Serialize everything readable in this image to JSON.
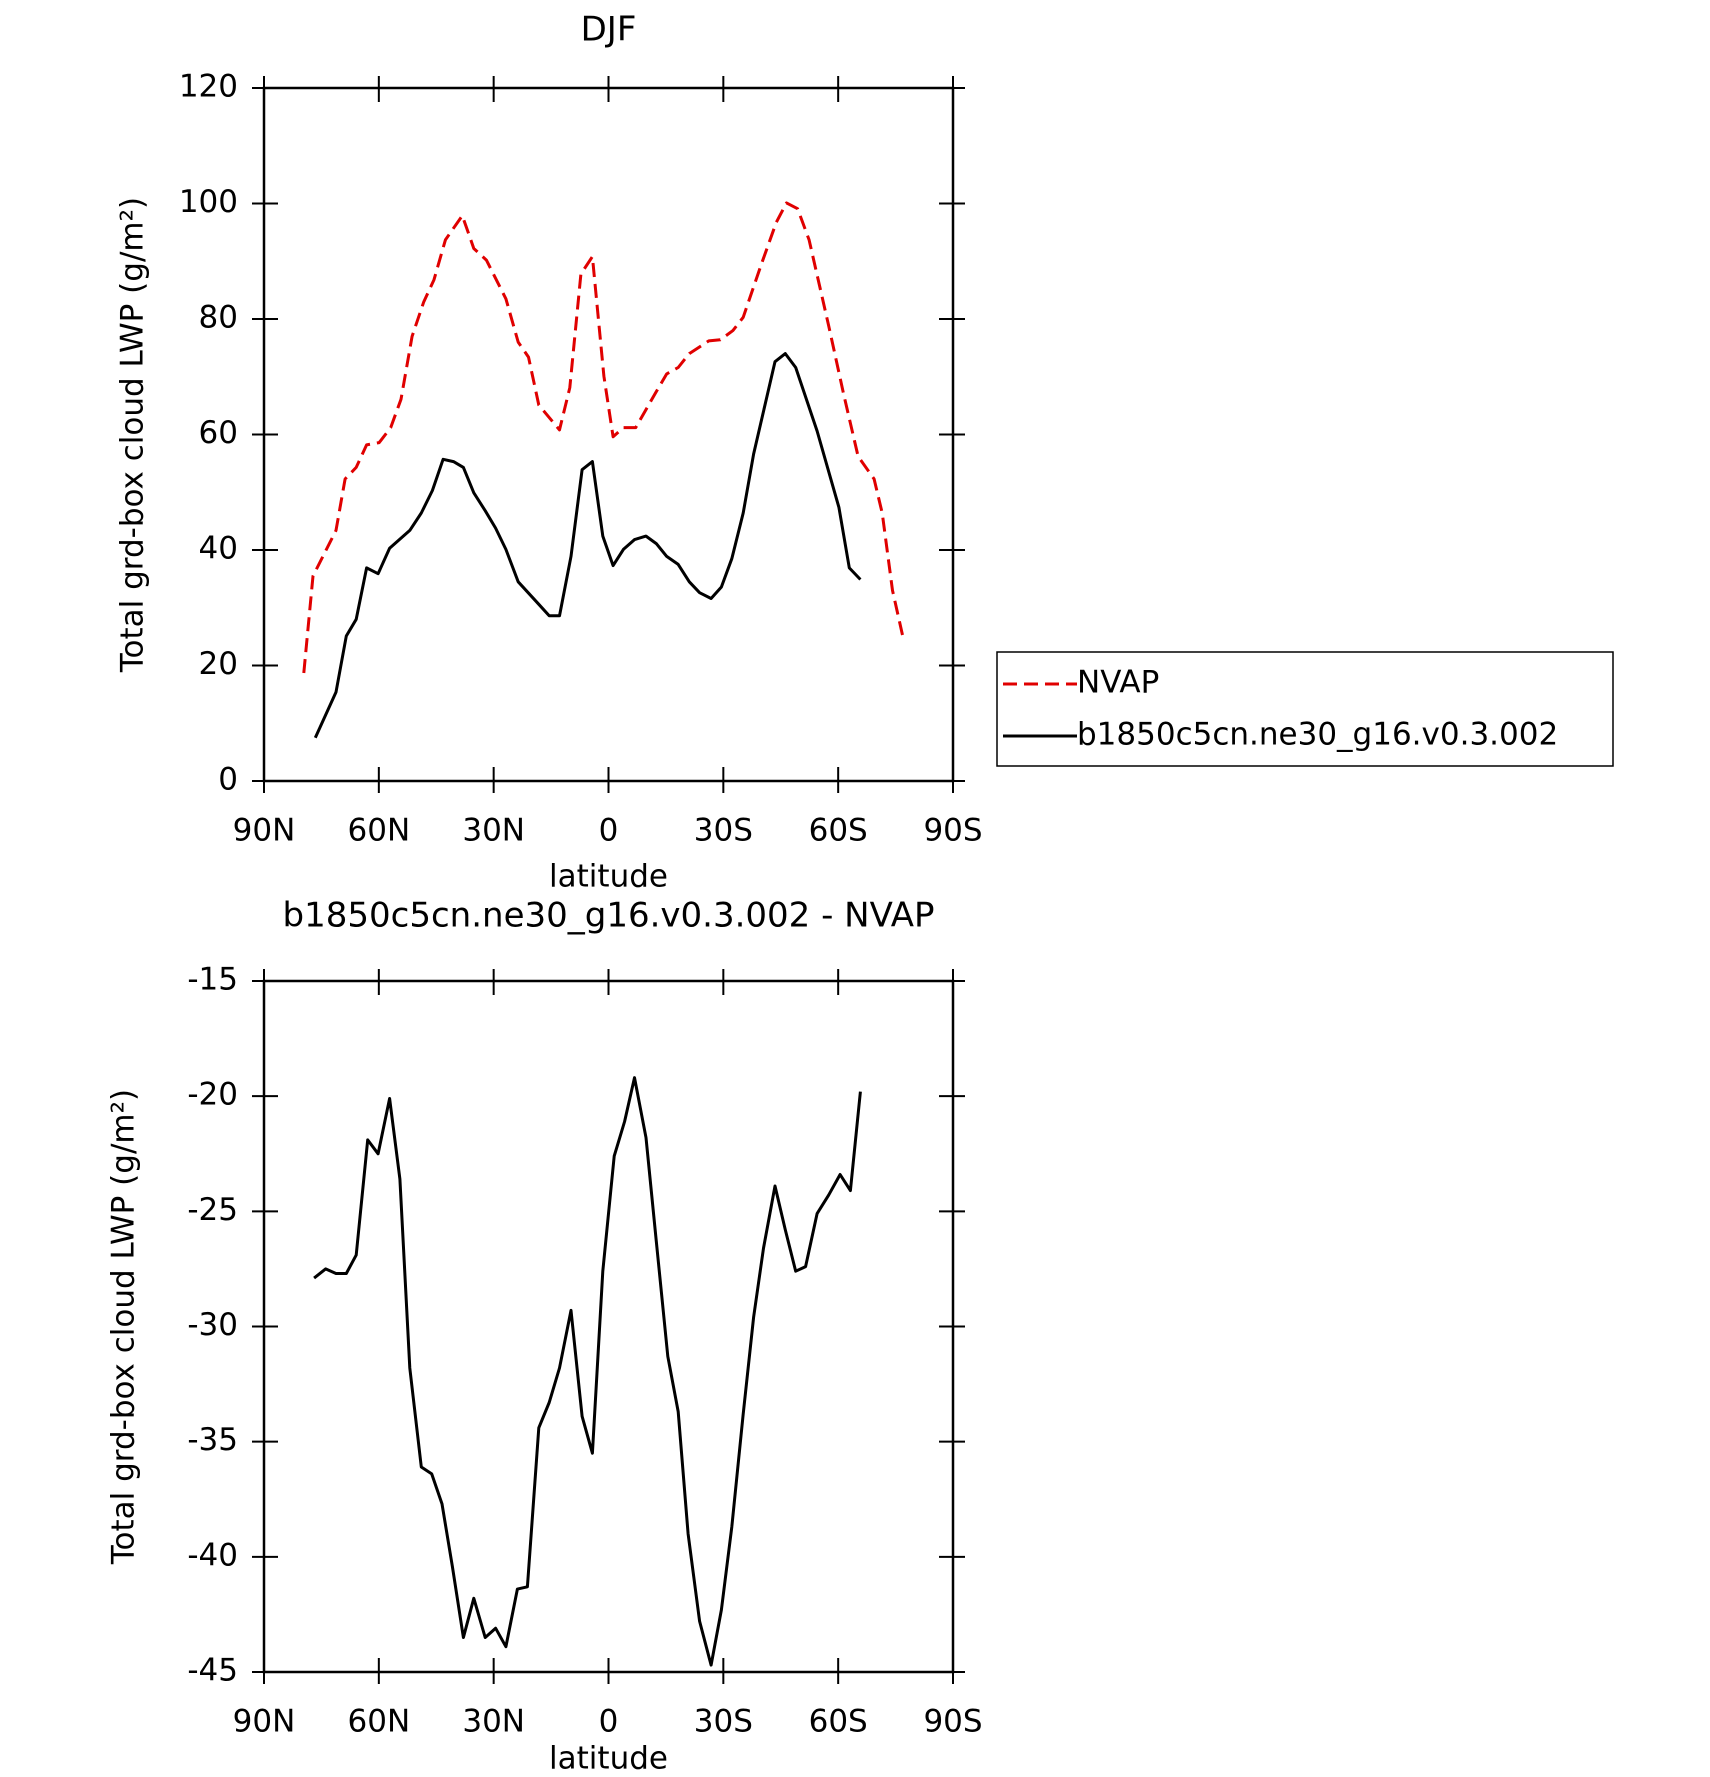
{
  "chart_data": [
    {
      "type": "line",
      "title": "DJF",
      "xlabel": "latitude",
      "ylabel": "Total grd-box cloud LWP (g/m²)",
      "xlim": [
        90,
        -90
      ],
      "xticks": [
        {
          "value": 90,
          "label": "90N"
        },
        {
          "value": 60,
          "label": "60N"
        },
        {
          "value": 30,
          "label": "30N"
        },
        0,
        {
          "value": -30,
          "label": "30S"
        },
        {
          "value": -60,
          "label": "60S"
        },
        {
          "value": -90,
          "label": "90S"
        }
      ],
      "ylim": [
        0,
        120
      ],
      "yticks": [
        0,
        20,
        40,
        60,
        80,
        100,
        120
      ],
      "legend": "right",
      "series": [
        {
          "name": "NVAP",
          "color": "#e00000",
          "dashed": true,
          "x": [
            79.6,
            77.2,
            71.2,
            68.8,
            65.9,
            63.2,
            59.9,
            56.9,
            54.2,
            51.3,
            48.3,
            45.6,
            42.6,
            38.2,
            35.2,
            31.9,
            26.8,
            23.6,
            20.9,
            18.2,
            12.8,
            10.1,
            7.2,
            4.2,
            1.2,
            -1.2,
            -3.9,
            -7.1,
            -12.2,
            -15.2,
            -18.2,
            -21.1,
            -26.2,
            -29.2,
            -32.5,
            -35.2,
            -39.9,
            -43.8,
            -46.5,
            -49.4,
            -52.4,
            -57.5,
            -61.4,
            -65.2,
            -69.4,
            -71.5,
            -74.2,
            -77.2
          ],
          "values": [
            18.7,
            35.5,
            43.4,
            52.3,
            54.3,
            58.2,
            58.6,
            61.2,
            66.1,
            77.0,
            82.9,
            86.8,
            93.7,
            97.9,
            92.2,
            90.2,
            83.5,
            76.0,
            73.4,
            65.1,
            60.8,
            68.1,
            87.8,
            90.8,
            70.1,
            59.6,
            61.2,
            61.2,
            67.1,
            70.5,
            71.6,
            74.0,
            76.2,
            76.4,
            78.0,
            80.3,
            89.4,
            96.7,
            100.1,
            99.1,
            93.7,
            78.9,
            67.1,
            56.2,
            52.3,
            46.4,
            33.0,
            24.1
          ]
        },
        {
          "name": "b1850c5cn.ne30_g16.v0.3.002",
          "color": "#000000",
          "dashed": false,
          "x": [
            76.6,
            71.2,
            68.5,
            65.9,
            63.2,
            60.2,
            57.2,
            51.9,
            48.9,
            46.0,
            43.2,
            40.5,
            37.9,
            35.2,
            32.2,
            29.5,
            26.8,
            23.6,
            18.2,
            15.5,
            12.8,
            9.8,
            6.9,
            4.2,
            1.5,
            -1.2,
            -3.9,
            -6.8,
            -9.8,
            -12.5,
            -15.2,
            -18.2,
            -21.1,
            -23.8,
            -26.8,
            -29.5,
            -32.2,
            -35.2,
            -37.9,
            -43.5,
            -46.2,
            -48.9,
            -54.5,
            -60.2,
            -62.9,
            -65.8
          ],
          "values": [
            7.5,
            15.4,
            25.1,
            28.0,
            36.9,
            35.9,
            40.3,
            43.4,
            46.4,
            50.3,
            55.7,
            55.3,
            54.3,
            49.9,
            46.8,
            43.8,
            40.1,
            34.5,
            30.6,
            28.6,
            28.6,
            38.9,
            53.9,
            55.3,
            42.4,
            37.3,
            40.1,
            41.8,
            42.4,
            41.1,
            38.9,
            37.5,
            34.5,
            32.6,
            31.6,
            33.6,
            38.5,
            46.4,
            56.6,
            72.6,
            74.0,
            71.6,
            60.6,
            47.4,
            36.9,
            34.9
          ]
        }
      ]
    },
    {
      "type": "line",
      "title": "b1850c5cn.ne30_g16.v0.3.002 - NVAP",
      "xlabel": "latitude",
      "ylabel": "Total grd-box cloud LWP (g/m²)",
      "xlim": [
        90,
        -90
      ],
      "xticks": [
        {
          "value": 90,
          "label": "90N"
        },
        {
          "value": 60,
          "label": "60N"
        },
        {
          "value": 30,
          "label": "30N"
        },
        0,
        {
          "value": -30,
          "label": "30S"
        },
        {
          "value": -60,
          "label": "60S"
        },
        {
          "value": -90,
          "label": "90S"
        }
      ],
      "ylim": [
        -45,
        -15
      ],
      "yticks": [
        -45,
        -40,
        -35,
        -30,
        -25,
        -20,
        -15
      ],
      "series": [
        {
          "color": "#000000",
          "dashed": false,
          "x": [
            76.9,
            73.9,
            71.2,
            68.5,
            65.9,
            62.9,
            60.2,
            57.2,
            54.5,
            51.9,
            48.9,
            46.2,
            43.5,
            40.8,
            37.9,
            35.2,
            32.2,
            29.5,
            26.8,
            23.8,
            21.2,
            18.2,
            15.5,
            12.8,
            9.8,
            6.9,
            4.2,
            1.5,
            -1.5,
            -4.2,
            -6.8,
            -9.8,
            -12.5,
            -15.5,
            -18.2,
            -20.8,
            -23.8,
            -26.8,
            -29.5,
            -32.2,
            -35.2,
            -37.9,
            -40.5,
            -43.5,
            -46.2,
            -48.9,
            -51.5,
            -54.5,
            -57.5,
            -60.5,
            -63.2,
            -65.8
          ],
          "values": [
            -27.9,
            -27.5,
            -27.7,
            -27.7,
            -26.9,
            -21.9,
            -22.5,
            -20.1,
            -23.6,
            -31.8,
            -36.1,
            -36.4,
            -37.7,
            -40.4,
            -43.5,
            -41.8,
            -43.5,
            -43.1,
            -43.9,
            -41.4,
            -41.3,
            -34.4,
            -33.3,
            -31.8,
            -29.3,
            -33.9,
            -35.5,
            -27.6,
            -22.6,
            -21.1,
            -19.2,
            -21.8,
            -26.3,
            -31.3,
            -33.7,
            -39.0,
            -42.8,
            -44.7,
            -42.3,
            -38.7,
            -33.8,
            -29.6,
            -26.6,
            -23.9,
            -25.8,
            -27.6,
            -27.4,
            -25.1,
            -24.3,
            -23.4,
            -24.1,
            -19.8
          ]
        }
      ]
    }
  ]
}
